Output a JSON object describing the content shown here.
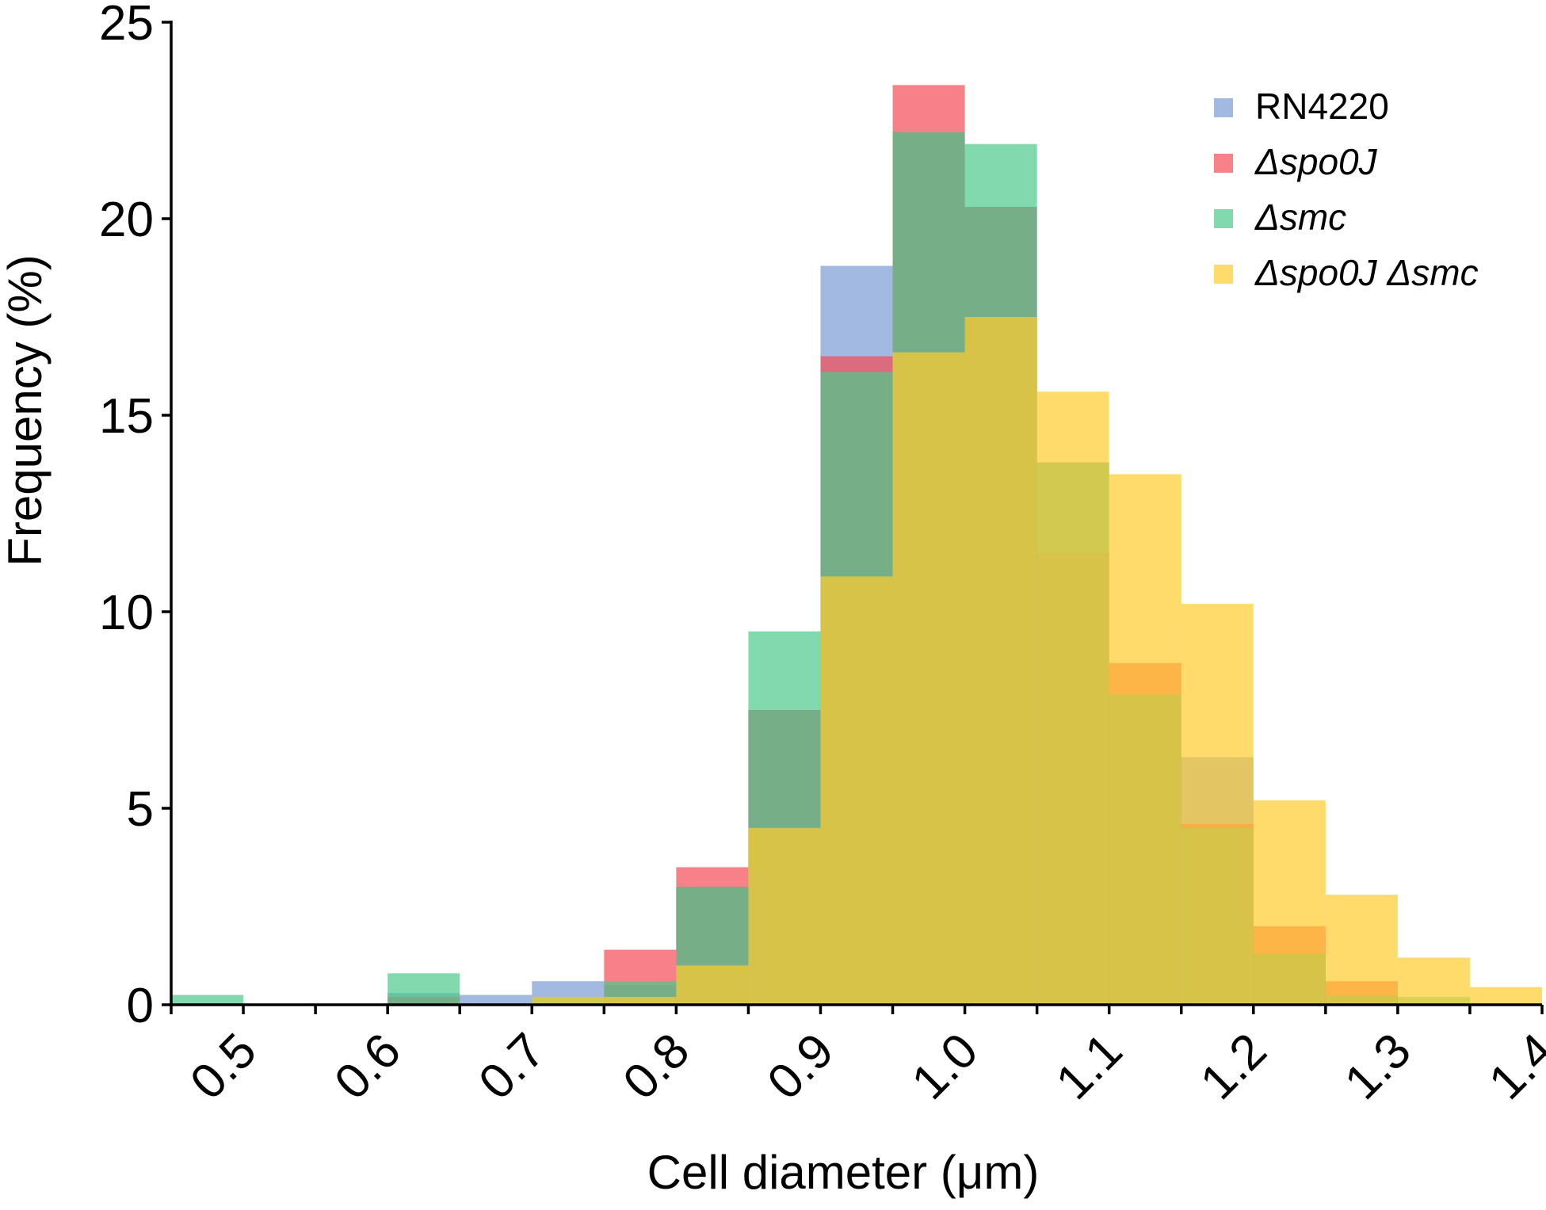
{
  "chart_data": {
    "type": "bar",
    "subtype": "overlapping-histogram",
    "title": "",
    "xlabel": "Cell diameter (μm)",
    "ylabel": "Frequency (%)",
    "xlim": [
      0.45,
      1.4
    ],
    "ylim": [
      0,
      25
    ],
    "x_ticks": [
      0.5,
      0.6,
      0.7,
      0.8,
      0.9,
      1.0,
      1.1,
      1.2,
      1.3,
      1.4
    ],
    "x_tick_labels": [
      "0.5",
      "0.6",
      "0.7",
      "0.8",
      "0.9",
      "1.0",
      "1.1",
      "1.2",
      "1.3",
      "1.4"
    ],
    "y_ticks": [
      0,
      5,
      10,
      15,
      20,
      25
    ],
    "y_tick_labels": [
      "0",
      "5",
      "10",
      "15",
      "20",
      "25"
    ],
    "bin_width": 0.05,
    "bins_left": [
      0.45,
      0.5,
      0.55,
      0.6,
      0.65,
      0.7,
      0.75,
      0.8,
      0.85,
      0.9,
      0.95,
      1.0,
      1.05,
      1.1,
      1.15,
      1.2,
      1.25,
      1.3,
      1.35
    ],
    "grid": false,
    "legend": {
      "position": "top-right"
    },
    "series": [
      {
        "name": "RN4220",
        "italic": false,
        "color": "#7b9bd4",
        "values": [
          0,
          0,
          0,
          0.3,
          0.25,
          0.6,
          0.5,
          3.0,
          7.5,
          18.8,
          22.2,
          20.3,
          13.8,
          7.9,
          6.3,
          1.3,
          0.25,
          0,
          0
        ]
      },
      {
        "name": "Δspo0J",
        "italic": true,
        "color": "#f44c55",
        "values": [
          0,
          0,
          0,
          0.2,
          0,
          0,
          1.4,
          3.5,
          7.5,
          16.5,
          23.4,
          20.3,
          11.5,
          8.7,
          4.6,
          2.0,
          0.6,
          0,
          0
        ]
      },
      {
        "name": "Δsmc",
        "italic": true,
        "color": "#4ccb8a",
        "values": [
          0.25,
          0,
          0,
          0.8,
          0,
          0.2,
          0.6,
          3.0,
          9.5,
          16.1,
          22.2,
          21.9,
          13.8,
          7.9,
          4.5,
          1.3,
          0.25,
          0.2,
          0
        ]
      },
      {
        "name": "Δspo0J Δsmc",
        "italic": true,
        "color": "#ffcc2e",
        "values": [
          0,
          0,
          0,
          0,
          0,
          0.2,
          0.2,
          1.0,
          4.5,
          10.9,
          16.6,
          17.5,
          15.6,
          13.5,
          10.2,
          5.2,
          2.8,
          1.2,
          0.45
        ]
      }
    ]
  }
}
